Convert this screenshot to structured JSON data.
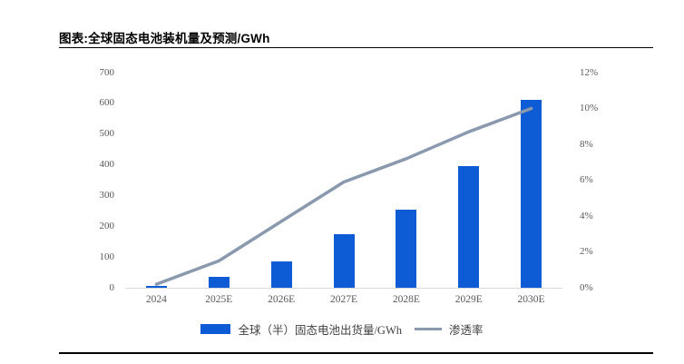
{
  "header": {
    "title": "图表:全球固态电池装机量及预测/GWh"
  },
  "colors": {
    "bar_blue": "#0d5cd6",
    "line_gray": "#8a99ad",
    "axis_text": "#595959",
    "axis_line": "#d9d9d9",
    "rule_black": "#000000"
  },
  "chart_data": {
    "type": "bar+line combo",
    "title": "图表:全球固态电池装机量及预测/GWh",
    "categories": [
      "2024",
      "2025E",
      "2026E",
      "2027E",
      "2028E",
      "2029E",
      "2030E"
    ],
    "series": [
      {
        "name": "全球（半）固态电池出货量/GWh",
        "type": "bar",
        "axis": "left",
        "color": "#0d5cd6",
        "values": [
          5,
          35,
          85,
          175,
          255,
          395,
          610
        ]
      },
      {
        "name": "渗透率",
        "type": "line",
        "axis": "right",
        "color": "#8a99ad",
        "values": [
          0.2,
          1.5,
          3.7,
          5.9,
          7.2,
          8.7,
          10.0
        ]
      }
    ],
    "left_axis": {
      "min": 0,
      "max": 700,
      "step": 100,
      "ticks": [
        "0",
        "100",
        "200",
        "300",
        "400",
        "500",
        "600",
        "700"
      ]
    },
    "right_axis": {
      "min": 0,
      "max": 12,
      "step": 2,
      "ticks": [
        "0%",
        "2%",
        "4%",
        "6%",
        "8%",
        "10%",
        "12%"
      ]
    },
    "grid": false,
    "legend_position": "bottom"
  }
}
